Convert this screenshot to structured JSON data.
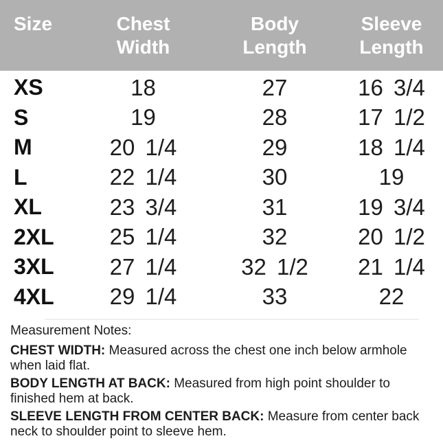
{
  "colors": {
    "header_bg": "#b1b1b1",
    "header_text": "#ffffff",
    "body_text": "#1d1d1d",
    "separator": "#efefef"
  },
  "table": {
    "header_labels": [
      "Size",
      "Chest\nWidth",
      "Body\nLength",
      "Sleeve\nLength"
    ]
  },
  "chart_data": {
    "type": "table",
    "columns": [
      "Size",
      "Chest Width",
      "Body Length",
      "Sleeve Length"
    ],
    "rows": [
      [
        "XS",
        "18",
        "27",
        "16 3/4"
      ],
      [
        "S",
        "19",
        "28",
        "17 1/2"
      ],
      [
        "M",
        "20 1/4",
        "29",
        "18 1/4"
      ],
      [
        "L",
        "22 1/4",
        "30",
        "19"
      ],
      [
        "XL",
        "23 3/4",
        "31",
        "19 3/4"
      ],
      [
        "2XL",
        "25 1/4",
        "32",
        "20 1/2"
      ],
      [
        "3XL",
        "27 1/4",
        "32 1/2",
        "21 1/4"
      ],
      [
        "4XL",
        "29 1/4",
        "33",
        "22"
      ]
    ]
  },
  "notes": {
    "title": "Measurement Notes:",
    "items": [
      {
        "label": "CHEST WIDTH:",
        "text": " Measured across the chest one inch below armhole\nwhen laid flat."
      },
      {
        "label": "BODY LENGTH AT BACK:",
        "text": " Measured from high point shoulder to\nfinished hem at back."
      },
      {
        "label": "SLEEVE LENGTH FROM CENTER BACK:",
        "text": " Measure from center back\nneck to shoulder point to sleeve hem."
      }
    ]
  }
}
